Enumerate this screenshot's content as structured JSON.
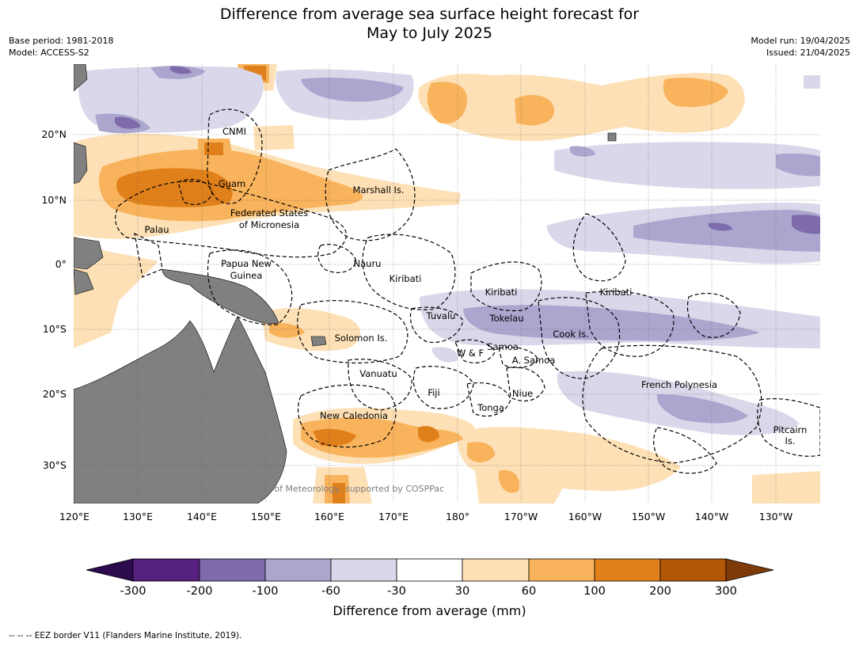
{
  "header": {
    "title_line1": "Difference from average sea surface height forecast for",
    "title_line2": "May to July 2025",
    "base_period": "Base period: 1981-2018",
    "model": "Model: ACCESS-S2",
    "model_run": "Model run: 19/04/2025",
    "issued": "Issued: 21/04/2025"
  },
  "map": {
    "lon_ticks": [
      "120°E",
      "130°E",
      "140°E",
      "150°E",
      "160°E",
      "170°E",
      "180°",
      "170°W",
      "160°W",
      "150°W",
      "140°W",
      "130°W"
    ],
    "lat_ticks": [
      "20°N",
      "10°N",
      "0°",
      "10°S",
      "20°S",
      "30°S"
    ],
    "region_labels": [
      "CNMI",
      "Guam",
      "Marshall Is.",
      "Federated States",
      "of Micronesia",
      "Palau",
      "Papua New",
      "Guinea",
      "Nauru",
      "Kiribati",
      "Kiribati",
      "Kiribati",
      "Tuvalu",
      "Tokelau",
      "Cook Is.",
      "Solomon Is.",
      "Samoa",
      "W & F",
      "A. Samoa",
      "Vanuatu",
      "Fiji",
      "Niue",
      "French Polynesia",
      "Tonga",
      "New Caledonia",
      "Pitcairn",
      "Is."
    ],
    "credit": "© Commonwealth of Australia 2025, Bureau of Meteorology, supported by COSPPac",
    "land_color": "#808080"
  },
  "colorbar": {
    "tick_labels": [
      "-300",
      "-200",
      "-100",
      "-60",
      "-30",
      "30",
      "60",
      "100",
      "200",
      "300"
    ],
    "colors": [
      "#2d0a4e",
      "#56207f",
      "#7e6bac",
      "#aca6cf",
      "#d9d8ea",
      "#ffffff",
      "#fde0b5",
      "#f8b35c",
      "#e0801a",
      "#b25706",
      "#7e3b08"
    ],
    "title": "Difference from average (mm)"
  },
  "footer": "--  --  -- EEZ border V11 (Flanders Marine Institute, 2019)."
}
